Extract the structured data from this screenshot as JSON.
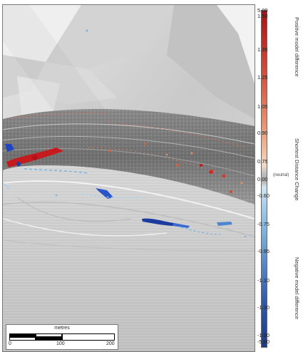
{
  "colors": {
    "positive": "#c61b1e",
    "negative": "#2146c0",
    "neutral": "#b5b5b5",
    "terrain": "#cfcfcf"
  },
  "scale_bar": {
    "title": "metres",
    "ticks": [
      "0",
      "100",
      "200"
    ]
  },
  "legend": {
    "positive_label": "Positive model difference",
    "change_label": "Shortest Distance Change",
    "neutral_label": "(neutral)",
    "negative_label": "Negative model difference",
    "values": [
      "5.00",
      "1.50",
      "1.35",
      "1.25",
      "1.05",
      "0.90",
      "0.75",
      "0.00",
      "-0.60",
      "-0.75",
      "-0.95",
      "-1.10",
      "-1.30",
      "-1.50",
      "-5.00"
    ]
  }
}
